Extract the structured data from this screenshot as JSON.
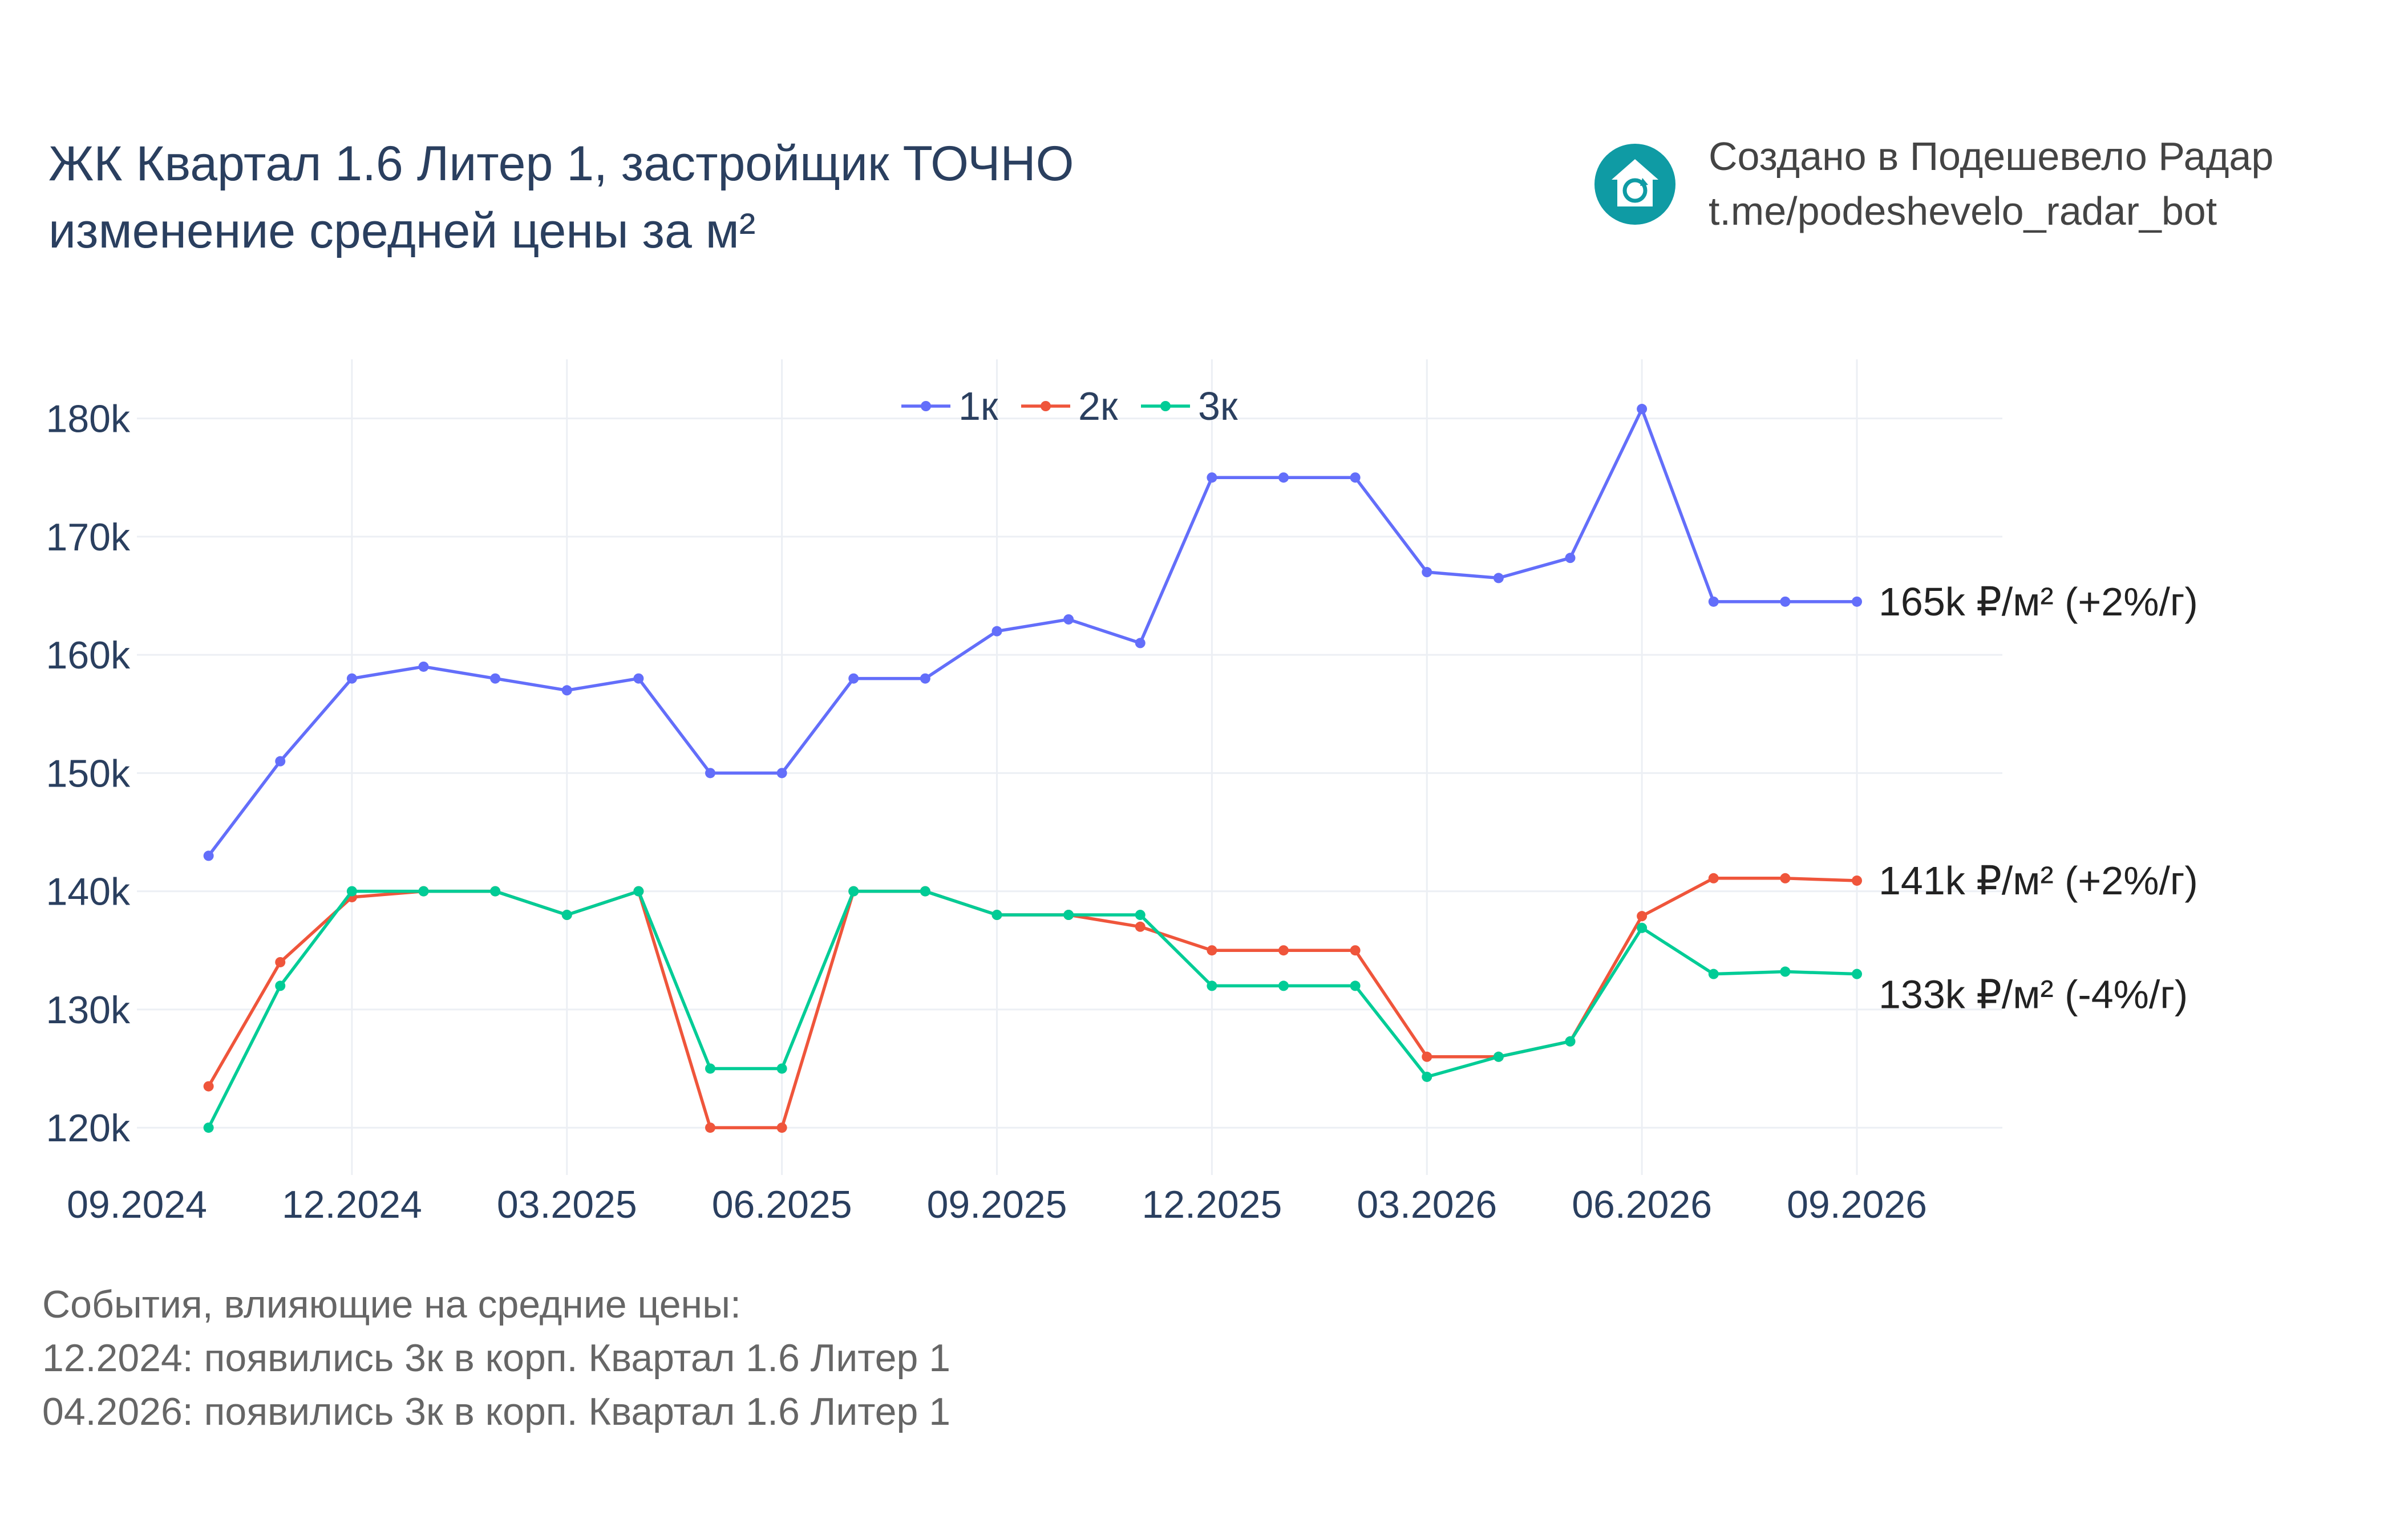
{
  "header": {
    "title_line1": "ЖК Квартал 1.6 Литер 1, застройщик ТОЧНО",
    "title_line2": "изменение средней цены за м²"
  },
  "brand": {
    "icon": "house-refresh-icon",
    "line1": "Создано в Подешевело Радар",
    "line2": "t.me/podeshevelo_radar_bot",
    "color": "#0f9ba4"
  },
  "events": {
    "heading": "События, влияющие на средние цены:",
    "items": [
      "12.2024: появились 3к в корп. Квартал 1.6 Литер 1",
      "04.2026: появились 3к в корп. Квартал 1.6 Литер 1"
    ]
  },
  "chart_data": {
    "type": "line",
    "x": [
      "2024-10",
      "2024-11",
      "2024-12",
      "2025-01",
      "2025-02",
      "2025-03",
      "2025-04",
      "2025-05",
      "2025-06",
      "2025-07",
      "2025-08",
      "2025-09",
      "2025-10",
      "2025-11",
      "2025-12",
      "2026-01",
      "2026-02",
      "2026-03",
      "2026-04",
      "2026-05",
      "2026-06",
      "2026-07",
      "2026-08",
      "2026-09"
    ],
    "xlim": [
      "2024-09",
      "2026-09"
    ],
    "x_ticks": [
      "09.2024",
      "12.2024",
      "03.2025",
      "06.2025",
      "09.2025",
      "12.2025",
      "03.2026",
      "06.2026",
      "09.2026"
    ],
    "ylim": [
      116000,
      185000
    ],
    "y_ticks": [
      "120k",
      "130k",
      "140k",
      "150k",
      "160k",
      "170k",
      "180k"
    ],
    "grid": true,
    "legend_position": "top-center",
    "series": [
      {
        "name": "1к",
        "color": "#636efa",
        "values": [
          143000,
          151000,
          158000,
          159000,
          158000,
          157000,
          158000,
          150000,
          150000,
          158000,
          158000,
          162000,
          163000,
          161000,
          175000,
          175000,
          175000,
          167000,
          166500,
          168200,
          180800,
          164500,
          164500,
          164500
        ],
        "end_label": "165k ₽/м² (+2%/г)"
      },
      {
        "name": "2к",
        "color": "#ef553b",
        "values": [
          123500,
          134000,
          139500,
          140000,
          140000,
          138000,
          140000,
          120000,
          120000,
          140000,
          140000,
          138000,
          138000,
          137000,
          135000,
          135000,
          135000,
          126000,
          126000,
          127300,
          137900,
          141100,
          141100,
          140900
        ],
        "end_label": "141k ₽/м² (+2%/г)"
      },
      {
        "name": "3к",
        "color": "#00cc96",
        "values": [
          120000,
          132000,
          140000,
          140000,
          140000,
          138000,
          140000,
          125000,
          125000,
          140000,
          140000,
          138000,
          138000,
          138000,
          132000,
          132000,
          132000,
          124300,
          126000,
          127300,
          136900,
          133000,
          133200,
          133000
        ],
        "end_label": "133k ₽/м² (-4%/г)"
      }
    ]
  }
}
